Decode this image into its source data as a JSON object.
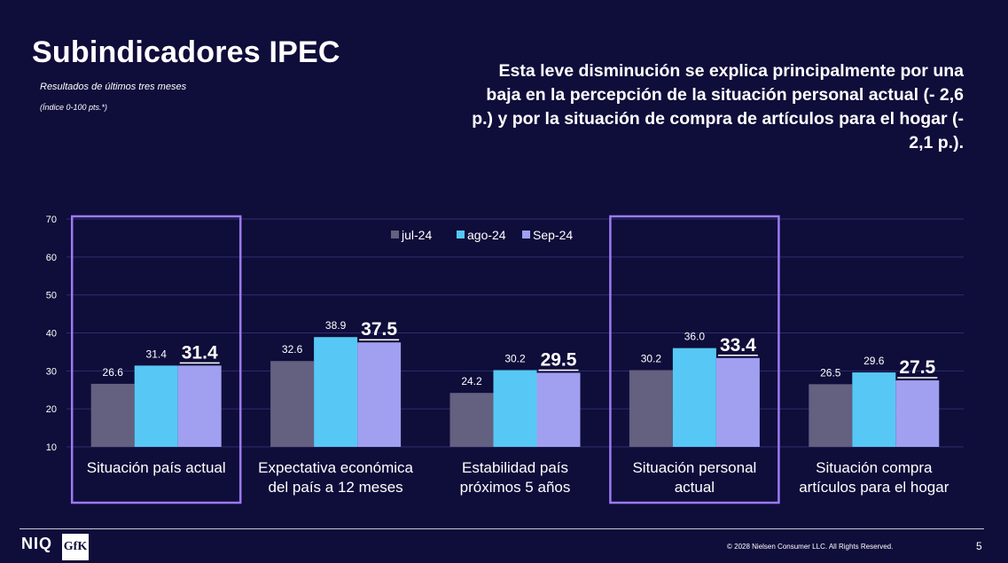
{
  "header": {
    "title": "Subindicadores IPEC",
    "subtitle": "Resultados de últimos tres meses",
    "note": "(Índice 0-100 pts.*)",
    "headline": "Esta leve disminución se explica principalmente por una baja en la percepción de la situación personal actual (- 2,6 p.) y por la situación de compra de artículos para el hogar (- 2,1 p.)."
  },
  "colors": {
    "background": "#0f0d3a",
    "jul": "#636080",
    "ago": "#57c8f5",
    "sep": "#a09ff0",
    "highlight_box": "#9b7bf3",
    "grid": "#2f2d6e"
  },
  "chart_data": {
    "type": "bar",
    "categories": [
      [
        "Situación país actual"
      ],
      [
        "Expectativa económica",
        "del país a 12 meses"
      ],
      [
        "Estabilidad país",
        "próximos 5 años"
      ],
      [
        "Situación personal",
        "actual"
      ],
      [
        "Situación compra",
        "artículos para el hogar"
      ]
    ],
    "series": [
      {
        "name": "jul-24",
        "values": [
          26.6,
          32.6,
          24.2,
          30.2,
          26.5
        ],
        "labels": [
          "26.6",
          "32.6",
          "24.2",
          "30.2",
          "26.5"
        ]
      },
      {
        "name": "ago-24",
        "values": [
          31.4,
          38.9,
          30.2,
          36.0,
          29.6
        ],
        "labels": [
          "31.4",
          "38.9",
          "30.2",
          "36.0",
          "29.6"
        ]
      },
      {
        "name": "Sep-24",
        "values": [
          31.4,
          37.5,
          29.5,
          33.4,
          27.5
        ],
        "labels": [
          "31.4",
          "37.5",
          "29.5",
          "33.4",
          "27.5"
        ]
      }
    ],
    "yticks": [
      "10",
      "20",
      "30",
      "40",
      "50",
      "60",
      "70"
    ],
    "ylim": [
      10,
      70
    ],
    "grid": true,
    "legend": "top-center",
    "highlighted_categories": [
      0,
      3
    ]
  },
  "footer": {
    "logo_niq": "NIQ",
    "logo_gfk": "GfK",
    "copyright": "© 2028 Nielsen Consumer LLC. All Rights Reserved.",
    "page_number": "5"
  }
}
